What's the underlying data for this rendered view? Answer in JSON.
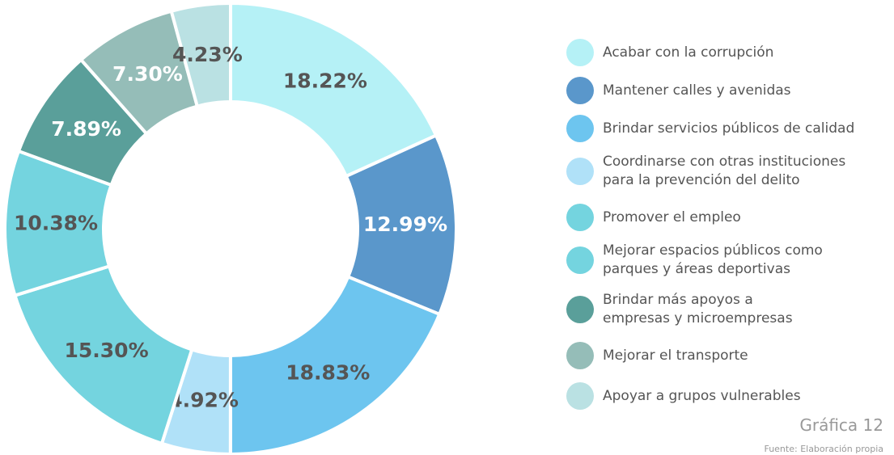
{
  "chart_data": {
    "type": "donut",
    "categories": [
      "Acabar con la corrupción",
      "Mantener calles y avenidas",
      "Brindar servicios públicos de calidad",
      "Coordinarse con otras instituciones\npara la prevención del delito",
      "Promover el empleo",
      "Mejorar espacios públicos como\nparques y áreas deportivas",
      "Brindar más apoyos a\nempresas y microempresas",
      "Mejorar el transporte",
      "Apoyar a grupos vulnerables"
    ],
    "values": [
      18.22,
      12.99,
      18.83,
      4.92,
      15.3,
      10.38,
      7.89,
      7.3,
      4.23
    ],
    "value_labels": [
      "18.22%",
      "12.99%",
      "18.83%",
      "4.92%",
      "15.30%",
      "10.38%",
      "7.89%",
      "7.30%",
      "4.23%"
    ],
    "colors": [
      "#b5f1f6",
      "#5a97cb",
      "#6dc5ef",
      "#b0e1f8",
      "#74d4df",
      "#74d4df",
      "#5a9f9a",
      "#95bdb8",
      "#bae1e3"
    ],
    "label_colors": [
      "#555555",
      "#ffffff",
      "#555555",
      "#555555",
      "#555555",
      "#555555",
      "#ffffff",
      "#ffffff",
      "#555555"
    ],
    "caption": "Gráfica 12",
    "source": "Fuente: Elaboración propia"
  }
}
